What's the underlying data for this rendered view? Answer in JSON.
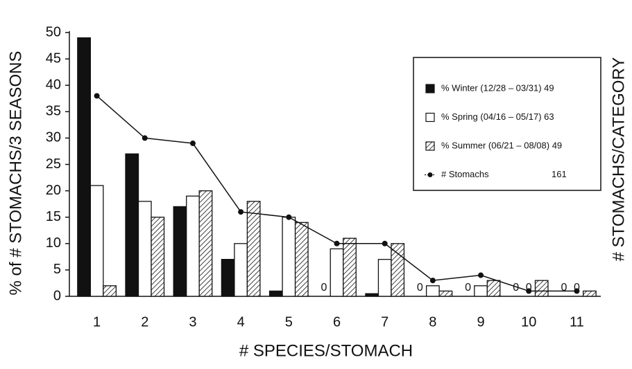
{
  "chart_data": {
    "type": "bar",
    "categories": [
      "1",
      "2",
      "3",
      "4",
      "5",
      "6",
      "7",
      "8",
      "9",
      "10",
      "11"
    ],
    "xlabel": "# SPECIES/STOMACH",
    "ylabel": "% of # STOMACHS/3 SEASONS",
    "y2label": "# STOMACHS/CATEGORY",
    "ylim": [
      0,
      50
    ],
    "yticks": [
      0,
      5,
      10,
      15,
      20,
      25,
      30,
      35,
      40,
      45,
      50
    ],
    "series": [
      {
        "name": "% Winter (12/28 – 03/31) 49",
        "color": "#111111",
        "hatch": false,
        "values": [
          49,
          27,
          17,
          7,
          1,
          0,
          0.5,
          0,
          0,
          0,
          0
        ],
        "value_labels": [
          null,
          null,
          null,
          null,
          null,
          "0",
          null,
          "0",
          "0",
          "0",
          "0"
        ]
      },
      {
        "name": "% Spring (04/16 – 05/17) 63",
        "color": "#ffffff",
        "hatch": false,
        "values": [
          21,
          18,
          19,
          10,
          15,
          9,
          7,
          2,
          2,
          0,
          0
        ],
        "value_labels": [
          null,
          null,
          null,
          null,
          null,
          null,
          null,
          null,
          null,
          "0",
          "0"
        ]
      },
      {
        "name": "% Summer (06/21 – 08/08) 49",
        "color": "#ffffff",
        "hatch": true,
        "values": [
          2,
          15,
          20,
          18,
          14,
          11,
          10,
          1,
          3,
          3,
          1
        ]
      },
      {
        "name": "# Stomachs",
        "total": "161",
        "type": "line",
        "color": "#111111",
        "values": [
          38,
          30,
          29,
          16,
          15,
          10,
          10,
          3,
          4,
          1,
          1
        ]
      }
    ],
    "legend": "upper right"
  }
}
